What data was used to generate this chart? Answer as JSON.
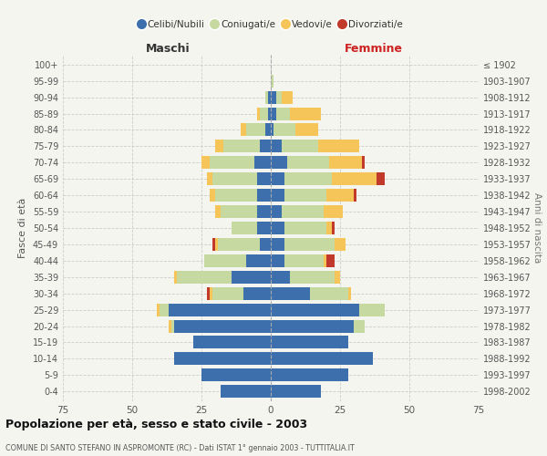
{
  "age_groups": [
    "0-4",
    "5-9",
    "10-14",
    "15-19",
    "20-24",
    "25-29",
    "30-34",
    "35-39",
    "40-44",
    "45-49",
    "50-54",
    "55-59",
    "60-64",
    "65-69",
    "70-74",
    "75-79",
    "80-84",
    "85-89",
    "90-94",
    "95-99",
    "100+"
  ],
  "birth_years": [
    "1998-2002",
    "1993-1997",
    "1988-1992",
    "1983-1987",
    "1978-1982",
    "1973-1977",
    "1968-1972",
    "1963-1967",
    "1958-1962",
    "1953-1957",
    "1948-1952",
    "1943-1947",
    "1938-1942",
    "1933-1937",
    "1928-1932",
    "1923-1927",
    "1918-1922",
    "1913-1917",
    "1908-1912",
    "1903-1907",
    "≤ 1902"
  ],
  "males": {
    "celibi": [
      18,
      25,
      35,
      28,
      35,
      37,
      10,
      14,
      9,
      4,
      5,
      5,
      5,
      5,
      6,
      4,
      2,
      1,
      1,
      0,
      0
    ],
    "coniugati": [
      0,
      0,
      0,
      0,
      1,
      3,
      11,
      20,
      15,
      15,
      9,
      13,
      15,
      16,
      16,
      13,
      7,
      3,
      1,
      0,
      0
    ],
    "vedovi": [
      0,
      0,
      0,
      0,
      1,
      1,
      1,
      1,
      0,
      1,
      0,
      2,
      2,
      2,
      3,
      3,
      2,
      1,
      0,
      0,
      0
    ],
    "divorziati": [
      0,
      0,
      0,
      0,
      0,
      0,
      1,
      0,
      0,
      1,
      0,
      0,
      0,
      0,
      0,
      0,
      0,
      0,
      0,
      0,
      0
    ]
  },
  "females": {
    "nubili": [
      18,
      28,
      37,
      28,
      30,
      32,
      14,
      7,
      5,
      5,
      5,
      4,
      5,
      5,
      6,
      4,
      1,
      2,
      2,
      0,
      0
    ],
    "coniugate": [
      0,
      0,
      0,
      0,
      4,
      9,
      14,
      16,
      14,
      18,
      15,
      15,
      15,
      17,
      15,
      13,
      8,
      5,
      2,
      1,
      0
    ],
    "vedove": [
      0,
      0,
      0,
      0,
      0,
      0,
      1,
      2,
      1,
      4,
      2,
      7,
      10,
      16,
      12,
      15,
      8,
      11,
      4,
      0,
      0
    ],
    "divorziate": [
      0,
      0,
      0,
      0,
      0,
      0,
      0,
      0,
      3,
      0,
      1,
      0,
      1,
      3,
      1,
      0,
      0,
      0,
      0,
      0,
      0
    ]
  },
  "colors": {
    "celibi": "#3d6fad",
    "coniugati": "#c5d9a0",
    "vedovi": "#f5c55a",
    "divorziati": "#c0392b"
  },
  "xlim": 75,
  "title": "Popolazione per età, sesso e stato civile - 2003",
  "subtitle": "COMUNE DI SANTO STEFANO IN ASPROMONTE (RC) - Dati ISTAT 1° gennaio 2003 - TUTTITALIA.IT",
  "ylabel": "Fasce di età",
  "ylabel_right": "Anni di nascita",
  "xlabel_left": "Maschi",
  "xlabel_right": "Femmine",
  "legend_labels": [
    "Celibi/Nubili",
    "Coniugati/e",
    "Vedovi/e",
    "Divorziati/e"
  ],
  "background_color": "#f5f5f0"
}
